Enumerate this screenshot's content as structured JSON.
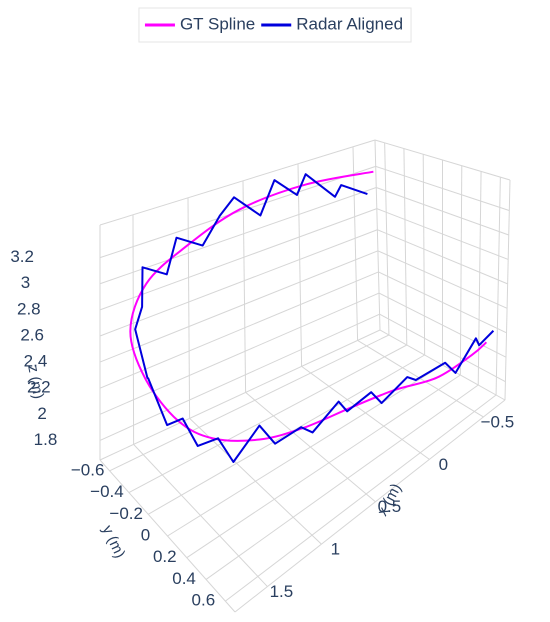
{
  "chart_data": {
    "type": "scatter3d",
    "legend": "top",
    "grid": true,
    "series": [
      {
        "name": "GT Spline",
        "color": "#ff00ff",
        "x": [
          -0.55,
          0.0,
          0.6,
          1.1,
          1.45,
          1.7,
          1.78,
          1.75,
          1.65,
          1.4,
          1.1,
          0.7,
          0.3,
          -0.1,
          -0.45,
          -0.6
        ],
        "y": [
          -0.55,
          -0.62,
          -0.62,
          -0.6,
          -0.62,
          -0.5,
          -0.25,
          0.05,
          0.3,
          0.5,
          0.62,
          0.66,
          0.66,
          0.65,
          0.62,
          0.6
        ],
        "z": [
          3.25,
          3.3,
          3.28,
          3.15,
          2.95,
          2.75,
          2.6,
          2.5,
          2.5,
          2.5,
          2.5,
          2.45,
          2.35,
          2.2,
          2.15,
          2.15
        ]
      },
      {
        "name": "Radar Aligned",
        "color": "#0000dd",
        "x": [
          -0.45,
          -0.3,
          -0.2,
          -0.05,
          0.1,
          0.25,
          0.45,
          0.6,
          0.8,
          1.0,
          1.15,
          1.3,
          1.45,
          1.55,
          1.7,
          1.72,
          1.8,
          1.76,
          1.75,
          1.7,
          1.62,
          1.55,
          1.4,
          1.3,
          1.15,
          1.0,
          0.85,
          0.7,
          0.55,
          0.4,
          0.2,
          0.05,
          -0.15,
          -0.3,
          -0.45,
          -0.55,
          -0.62
        ],
        "y": [
          -0.5,
          -0.6,
          -0.55,
          -0.68,
          -0.6,
          -0.66,
          -0.58,
          -0.68,
          -0.6,
          -0.55,
          -0.65,
          -0.58,
          -0.66,
          -0.55,
          -0.45,
          -0.3,
          -0.2,
          -0.05,
          0.1,
          0.2,
          0.32,
          0.4,
          0.5,
          0.55,
          0.65,
          0.6,
          0.7,
          0.62,
          0.7,
          0.64,
          0.68,
          0.6,
          0.68,
          0.62,
          0.66,
          0.58,
          0.65
        ],
        "z": [
          3.1,
          3.2,
          3.15,
          3.35,
          3.25,
          3.4,
          3.2,
          3.35,
          3.3,
          3.15,
          3.2,
          3.0,
          3.05,
          2.85,
          2.8,
          2.55,
          2.65,
          2.4,
          2.55,
          2.4,
          2.5,
          2.35,
          2.6,
          2.45,
          2.55,
          2.4,
          2.6,
          2.4,
          2.5,
          2.3,
          2.4,
          2.25,
          2.3,
          2.1,
          2.3,
          2.15,
          2.25
        ]
      }
    ],
    "xlabel": "x (m)",
    "ylabel": "y (m)",
    "zlabel": "z (m)",
    "xlim": [
      -0.7,
      1.8
    ],
    "ylim": [
      -0.7,
      0.7
    ],
    "zlim": [
      1.65,
      3.45
    ],
    "xticks": [
      {
        "value": -0.5,
        "label": "−0.5"
      },
      0,
      0.5,
      1,
      1.5
    ],
    "yticks": [
      {
        "value": -0.6,
        "label": "−0.6"
      },
      {
        "value": -0.4,
        "label": "−0.4"
      },
      {
        "value": -0.2,
        "label": "−0.2"
      },
      0,
      0.2,
      0.4,
      0.6
    ],
    "zticks": [
      1.8,
      2,
      2.2,
      2.4,
      2.6,
      2.8,
      3,
      3.2
    ]
  }
}
